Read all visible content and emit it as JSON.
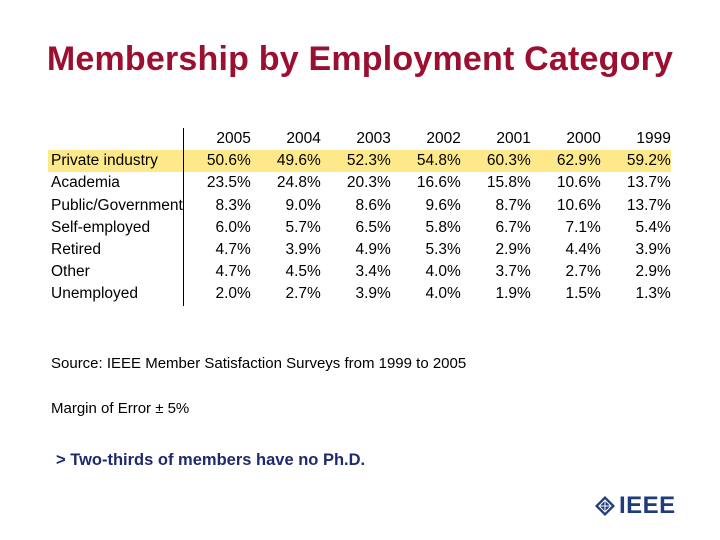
{
  "title": "Membership by Employment Category",
  "table": {
    "years": [
      "2005",
      "2004",
      "2003",
      "2002",
      "2001",
      "2000",
      "1999"
    ],
    "rows": [
      {
        "category": "Private industry",
        "values": [
          "50.6%",
          "49.6%",
          "52.3%",
          "54.8%",
          "60.3%",
          "62.9%",
          "59.2%"
        ]
      },
      {
        "category": "Academia",
        "values": [
          "23.5%",
          "24.8%",
          "20.3%",
          "16.6%",
          "15.8%",
          "10.6%",
          "13.7%"
        ]
      },
      {
        "category": "Public/Government",
        "values": [
          "8.3%",
          "9.0%",
          "8.6%",
          "9.6%",
          "8.7%",
          "10.6%",
          "13.7%"
        ]
      },
      {
        "category": "Self-employed",
        "values": [
          "6.0%",
          "5.7%",
          "6.5%",
          "5.8%",
          "6.7%",
          "7.1%",
          "5.4%"
        ]
      },
      {
        "category": "Retired",
        "values": [
          "4.7%",
          "3.9%",
          "4.9%",
          "5.3%",
          "2.9%",
          "4.4%",
          "3.9%"
        ]
      },
      {
        "category": "Other",
        "values": [
          "4.7%",
          "4.5%",
          "3.4%",
          "4.0%",
          "3.7%",
          "2.7%",
          "2.9%"
        ]
      },
      {
        "category": "Unemployed",
        "values": [
          "2.0%",
          "2.7%",
          "3.9%",
          "4.0%",
          "1.9%",
          "1.5%",
          "1.3%"
        ]
      }
    ]
  },
  "source": "Source:  IEEE Member Satisfaction Surveys from 1999 to 2005",
  "margin_of_error": "Margin of Error ± 5%",
  "note": "> Two-thirds of members have no Ph.D.",
  "logo": {
    "text": "IEEE",
    "icon": "ieee-diamond-icon"
  },
  "colors": {
    "title": "#9b1030",
    "highlight": "#fde98a",
    "note": "#1f2a6d",
    "logo": "#1f3c7c"
  }
}
